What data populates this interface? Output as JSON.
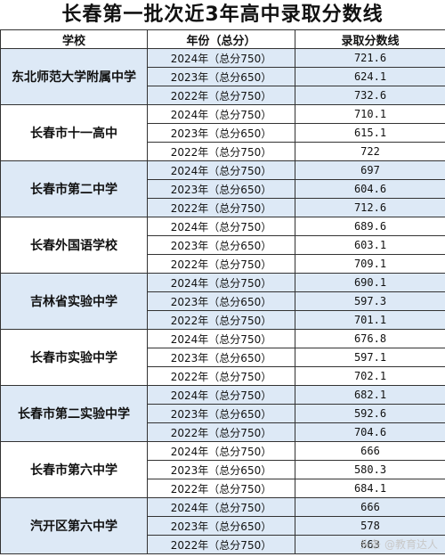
{
  "title": "长春第一批次近3年高中录取分数线",
  "headers": {
    "school": "学校",
    "year": "年份（总分）",
    "score": "录取分数线"
  },
  "schools": [
    {
      "name": "东北师范大学附属中学",
      "rows": [
        {
          "year": "2024年（总分750）",
          "score": "721.6"
        },
        {
          "year": "2023年（总分650）",
          "score": "624.1"
        },
        {
          "year": "2022年（总分750）",
          "score": "732.6"
        }
      ]
    },
    {
      "name": "长春市十一高中",
      "rows": [
        {
          "year": "2024年（总分750）",
          "score": "710.1"
        },
        {
          "year": "2023年（总分650）",
          "score": "615.1"
        },
        {
          "year": "2022年（总分750）",
          "score": "722"
        }
      ]
    },
    {
      "name": "长春市第二中学",
      "rows": [
        {
          "year": "2024年（总分750）",
          "score": "697"
        },
        {
          "year": "2023年（总分650）",
          "score": "604.6"
        },
        {
          "year": "2022年（总分750）",
          "score": "712.6"
        }
      ]
    },
    {
      "name": "长春外国语学校",
      "rows": [
        {
          "year": "2024年（总分750）",
          "score": "689.6"
        },
        {
          "year": "2023年（总分650）",
          "score": "603.1"
        },
        {
          "year": "2022年（总分750）",
          "score": "709.1"
        }
      ]
    },
    {
      "name": "吉林省实验中学",
      "rows": [
        {
          "year": "2024年（总分750）",
          "score": "690.1"
        },
        {
          "year": "2023年（总分650）",
          "score": "597.3"
        },
        {
          "year": "2022年（总分750）",
          "score": "701.1"
        }
      ]
    },
    {
      "name": "长春市实验中学",
      "rows": [
        {
          "year": "2024年（总分750）",
          "score": "676.8"
        },
        {
          "year": "2023年（总分650）",
          "score": "597.1"
        },
        {
          "year": "2022年（总分750）",
          "score": "702.1"
        }
      ]
    },
    {
      "name": "长春市第二实验中学",
      "rows": [
        {
          "year": "2024年（总分750）",
          "score": "682.1"
        },
        {
          "year": "2023年（总分650）",
          "score": "592.6"
        },
        {
          "year": "2022年（总分750）",
          "score": "704.6"
        }
      ]
    },
    {
      "name": "长春市第六中学",
      "rows": [
        {
          "year": "2024年（总分750）",
          "score": "666"
        },
        {
          "year": "2023年（总分650）",
          "score": "580.3"
        },
        {
          "year": "2022年（总分750）",
          "score": "684.1"
        }
      ]
    },
    {
      "name": "汽开区第六中学",
      "rows": [
        {
          "year": "2024年（总分750）",
          "score": "666"
        },
        {
          "year": "2023年（总分650）",
          "score": "578"
        },
        {
          "year": "2022年（总分750）",
          "score": "663"
        }
      ]
    }
  ],
  "watermark": "头条 @教育达人"
}
